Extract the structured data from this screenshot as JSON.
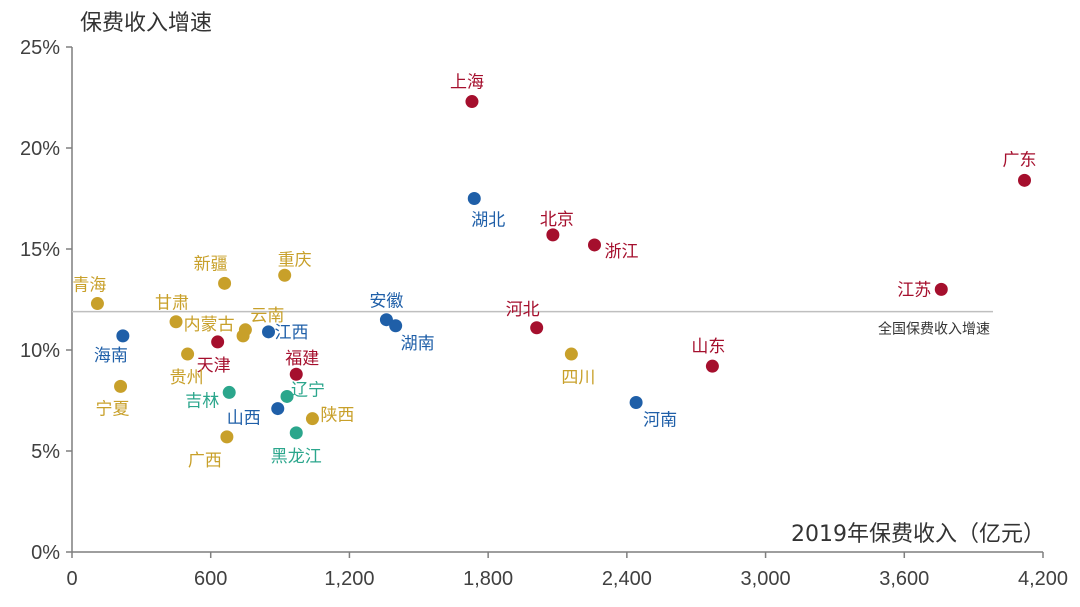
{
  "colors": {
    "red": "#A50F2D",
    "blue": "#1F5FA8",
    "gold": "#C8A02A",
    "teal": "#2BA68C",
    "axis": "#7F7F7F",
    "ref_line": "#BFBFBF"
  },
  "chart_data": {
    "type": "scatter",
    "title": "",
    "xlabel": "2019年保费收入（亿元）",
    "ylabel": "保费收入增速",
    "xlim": [
      0,
      4200
    ],
    "ylim": [
      0,
      25
    ],
    "x_ticks": [
      0,
      600,
      1200,
      1800,
      2400,
      3000,
      3600,
      4200
    ],
    "x_tick_labels": [
      "0",
      "600",
      "1,200",
      "1,800",
      "2,400",
      "3,000",
      "3,600",
      "4,200"
    ],
    "y_ticks": [
      0,
      5,
      10,
      15,
      20,
      25
    ],
    "y_tick_labels": [
      "0%",
      "5%",
      "10%",
      "15%",
      "20%",
      "25%"
    ],
    "grid": false,
    "reference_line": {
      "y": 11.9,
      "label": "全国保费收入增速"
    },
    "points": [
      {
        "label": "上海",
        "x": 1730,
        "y": 22.3,
        "color": "red"
      },
      {
        "label": "广东",
        "x": 4120,
        "y": 18.4,
        "color": "red"
      },
      {
        "label": "湖北",
        "x": 1740,
        "y": 17.5,
        "color": "blue"
      },
      {
        "label": "北京",
        "x": 2080,
        "y": 15.7,
        "color": "red"
      },
      {
        "label": "浙江",
        "x": 2260,
        "y": 15.2,
        "color": "red"
      },
      {
        "label": "重庆",
        "x": 920,
        "y": 13.7,
        "color": "gold"
      },
      {
        "label": "新疆",
        "x": 660,
        "y": 13.3,
        "color": "gold"
      },
      {
        "label": "江苏",
        "x": 3760,
        "y": 13.0,
        "color": "red"
      },
      {
        "label": "青海",
        "x": 110,
        "y": 12.3,
        "color": "gold"
      },
      {
        "label": "甘肃",
        "x": 450,
        "y": 11.4,
        "color": "gold"
      },
      {
        "label": "安徽",
        "x": 1360,
        "y": 11.5,
        "color": "blue"
      },
      {
        "label": "湖南",
        "x": 1400,
        "y": 11.2,
        "color": "blue"
      },
      {
        "label": "云南",
        "x": 750,
        "y": 11.0,
        "color": "gold"
      },
      {
        "label": "江西",
        "x": 850,
        "y": 10.9,
        "color": "blue"
      },
      {
        "label": "河北",
        "x": 2010,
        "y": 11.1,
        "color": "red"
      },
      {
        "label": "内蒙古",
        "x": 740,
        "y": 10.7,
        "color": "gold"
      },
      {
        "label": "海南",
        "x": 220,
        "y": 10.7,
        "color": "blue"
      },
      {
        "label": "天津",
        "x": 630,
        "y": 10.4,
        "color": "red"
      },
      {
        "label": "贵州",
        "x": 500,
        "y": 9.8,
        "color": "gold"
      },
      {
        "label": "四川",
        "x": 2160,
        "y": 9.8,
        "color": "gold"
      },
      {
        "label": "山东",
        "x": 2770,
        "y": 9.2,
        "color": "red"
      },
      {
        "label": "福建",
        "x": 970,
        "y": 8.8,
        "color": "red"
      },
      {
        "label": "宁夏",
        "x": 210,
        "y": 8.2,
        "color": "gold"
      },
      {
        "label": "吉林",
        "x": 680,
        "y": 7.9,
        "color": "teal"
      },
      {
        "label": "辽宁",
        "x": 930,
        "y": 7.7,
        "color": "teal"
      },
      {
        "label": "河南",
        "x": 2440,
        "y": 7.4,
        "color": "blue"
      },
      {
        "label": "山西",
        "x": 890,
        "y": 7.1,
        "color": "blue"
      },
      {
        "label": "陕西",
        "x": 1040,
        "y": 6.6,
        "color": "gold"
      },
      {
        "label": "黑龙江",
        "x": 970,
        "y": 5.9,
        "color": "teal"
      },
      {
        "label": "广西",
        "x": 670,
        "y": 5.7,
        "color": "gold"
      }
    ]
  }
}
